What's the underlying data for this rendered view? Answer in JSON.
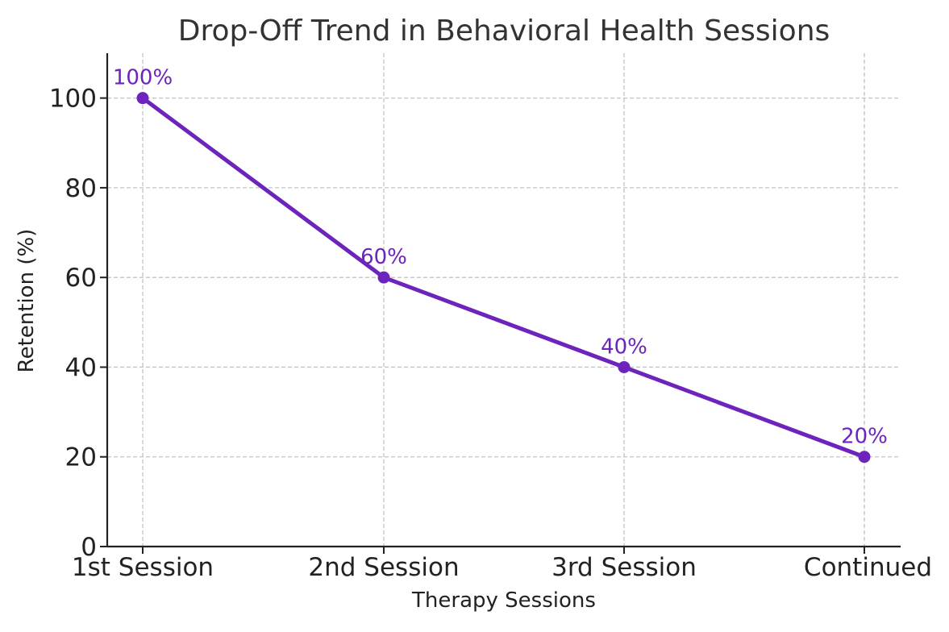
{
  "chart_data": {
    "type": "line",
    "title": "Drop-Off Trend in Behavioral Health Sessions",
    "xlabel": "Therapy Sessions",
    "ylabel": "Retention (%)",
    "categories": [
      "1st Session",
      "2nd Session",
      "3rd Session",
      "Continued"
    ],
    "series": [
      {
        "values": [
          100,
          60,
          40,
          20
        ],
        "data_labels": [
          "100%",
          "60%",
          "40%",
          "20%"
        ],
        "color": "#6c24bd",
        "marker": "circle"
      }
    ],
    "ylim": [
      0,
      110
    ],
    "yticks": [
      0,
      20,
      40,
      60,
      80,
      100
    ],
    "grid": true,
    "legend": "none"
  }
}
